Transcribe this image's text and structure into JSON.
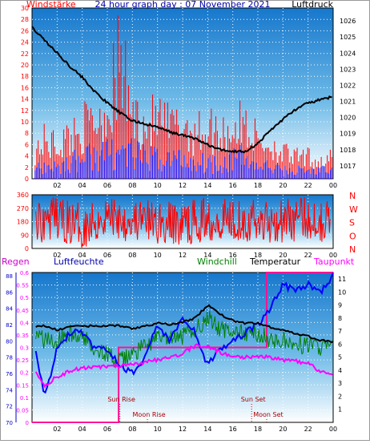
{
  "chart_data": [
    {
      "type": "line",
      "title": "24 hour graph day : 07 November 2021",
      "left_label": "Windstärke",
      "right_label": "Luftdruck",
      "left_ticks": [
        "0",
        "2",
        "4",
        "6",
        "8",
        "10",
        "12",
        "14",
        "16",
        "18",
        "20",
        "22",
        "24",
        "26",
        "28",
        "30"
      ],
      "right_ticks": [
        "1017",
        "1018",
        "1019",
        "1020",
        "1021",
        "1022",
        "1023",
        "1024",
        "1025",
        "1026"
      ],
      "x_ticks": [
        "02",
        "04",
        "06",
        "08",
        "10",
        "12",
        "14",
        "16",
        "18",
        "20",
        "22",
        "00"
      ],
      "ylim_left": [
        0,
        30
      ],
      "ylim_right": [
        1016.2,
        1026.8
      ],
      "grid": true,
      "series": [
        {
          "name": "Luftdruck",
          "color": "#000000",
          "x": [
            0,
            1,
            2,
            3,
            4,
            5,
            6,
            7,
            8,
            9,
            10,
            11,
            12,
            13,
            14,
            15,
            16,
            17,
            18,
            19,
            20,
            21,
            22,
            23,
            24
          ],
          "values": [
            1025.6,
            1024.8,
            1024.0,
            1023.2,
            1022.5,
            1021.6,
            1020.9,
            1020.3,
            1019.8,
            1019.6,
            1019.4,
            1019.1,
            1018.9,
            1018.7,
            1018.3,
            1018.0,
            1017.9,
            1017.9,
            1018.4,
            1019.2,
            1019.9,
            1020.5,
            1020.9,
            1021.1,
            1021.3
          ]
        },
        {
          "name": "Windböen",
          "color": "#ff0000",
          "x": [
            0,
            1,
            2,
            3,
            4,
            5,
            6,
            7,
            8,
            9,
            10,
            11,
            12,
            13,
            14,
            15,
            16,
            17,
            18,
            19,
            20,
            21,
            22,
            23,
            24
          ],
          "values": [
            6,
            9,
            8,
            10,
            12,
            14,
            16,
            28,
            15,
            13,
            14,
            12,
            13,
            11,
            12,
            11,
            12,
            13,
            9,
            8,
            6,
            5,
            5,
            4,
            5
          ]
        },
        {
          "name": "Wind",
          "color": "#0000ff",
          "x": [
            0,
            1,
            2,
            3,
            4,
            5,
            6,
            7,
            8,
            9,
            10,
            11,
            12,
            13,
            14,
            15,
            16,
            17,
            18,
            19,
            20,
            21,
            22,
            23,
            24
          ],
          "values": [
            2,
            3,
            3,
            4,
            5,
            6,
            6,
            7,
            6,
            5,
            5,
            5,
            5,
            4,
            4,
            4,
            5,
            5,
            3,
            3,
            2,
            2,
            2,
            2,
            2
          ]
        }
      ]
    },
    {
      "type": "scatter",
      "left_ticks": [
        "0",
        "90",
        "180",
        "270",
        "360"
      ],
      "right_labels": [
        "N",
        "W",
        "S",
        "O",
        "N"
      ],
      "x_ticks": [
        "02",
        "04",
        "06",
        "08",
        "10",
        "12",
        "14",
        "16",
        "18",
        "20",
        "22",
        "00"
      ],
      "ylim": [
        0,
        360
      ],
      "series": [
        {
          "name": "Windrichtung",
          "color": "#ff0000",
          "x": [
            0,
            2,
            4,
            6,
            8,
            10,
            12,
            14,
            16,
            18,
            20,
            22,
            24
          ],
          "values": [
            180,
            200,
            150,
            220,
            190,
            170,
            160,
            200,
            210,
            180,
            190,
            200,
            190
          ]
        }
      ]
    },
    {
      "type": "line",
      "header_labels": {
        "regen": "Regen",
        "luftfeuchte": "Luftfeuchte",
        "windchill": "Windchill",
        "temperatur": "Temperatur",
        "taupunkt": "Taupunkt"
      },
      "left_ticks": [
        "0",
        "0.05",
        "0.1",
        "0.15",
        "0.2",
        "0.25",
        "0.3",
        "0.35",
        "0.4",
        "0.45",
        "0.5",
        "0.55",
        "0.6"
      ],
      "humidity_ticks": [
        "70",
        "72",
        "74",
        "76",
        "78",
        "80",
        "82",
        "84",
        "86",
        "88"
      ],
      "right_ticks": [
        "1",
        "2",
        "3",
        "4",
        "5",
        "6",
        "7",
        "8",
        "9",
        "10",
        "11"
      ],
      "x_ticks": [
        "02",
        "04",
        "06",
        "08",
        "10",
        "12",
        "14",
        "16",
        "18",
        "20",
        "22",
        "00"
      ],
      "ylim_left": [
        0,
        0.6
      ],
      "ylim_temp": [
        0,
        11.5
      ],
      "events": {
        "sun_rise": "Sun Rise",
        "sun_set": "Sun Set",
        "moon_rise": "Moon Rise",
        "moon_set": "Moon Set"
      },
      "series": [
        {
          "name": "Temperatur",
          "color": "#000000",
          "x": [
            0,
            1,
            2,
            3,
            4,
            5,
            6,
            7,
            8,
            9,
            10,
            11,
            12,
            13,
            14,
            15,
            16,
            17,
            18,
            19,
            20,
            21,
            22,
            23,
            24
          ],
          "values": [
            7.3,
            7.4,
            7.1,
            7.3,
            7.4,
            7.4,
            7.4,
            7.4,
            7.2,
            7.4,
            7.6,
            7.5,
            7.7,
            8.0,
            9.0,
            8.3,
            7.8,
            7.6,
            7.6,
            7.3,
            7.1,
            6.8,
            6.6,
            6.3,
            6.2
          ]
        },
        {
          "name": "Windchill",
          "color": "#008000",
          "x": [
            0,
            1,
            2,
            3,
            4,
            5,
            6,
            7,
            8,
            9,
            10,
            11,
            12,
            13,
            14,
            15,
            16,
            17,
            18,
            19,
            20,
            21,
            22,
            23,
            24
          ],
          "values": [
            6.9,
            6.3,
            6.4,
            6.8,
            6.5,
            5.8,
            5.2,
            4.6,
            5.3,
            5.8,
            6.6,
            6.3,
            6.6,
            7.1,
            8.1,
            7.1,
            7.0,
            6.8,
            6.8,
            6.4,
            6.2,
            6.0,
            5.9,
            5.8,
            5.9
          ]
        },
        {
          "name": "Luftfeuchte",
          "color": "#0000ff",
          "x": [
            0,
            1,
            2,
            3,
            4,
            5,
            6,
            7,
            8,
            9,
            10,
            11,
            12,
            13,
            14,
            15,
            16,
            17,
            18,
            19,
            20,
            21,
            22,
            23,
            24
          ],
          "values": [
            81,
            73,
            79,
            81,
            81,
            79,
            79,
            77,
            76,
            78,
            82,
            80,
            83,
            81,
            77,
            79,
            80,
            81,
            82,
            84,
            87,
            86,
            87,
            86,
            88
          ]
        },
        {
          "name": "Taupunkt",
          "color": "#ff00ff",
          "x": [
            0,
            1,
            2,
            3,
            4,
            5,
            6,
            7,
            8,
            9,
            10,
            11,
            12,
            13,
            14,
            15,
            16,
            17,
            18,
            19,
            20,
            21,
            22,
            23,
            24
          ],
          "values": [
            4.2,
            2.8,
            3.5,
            3.9,
            4.2,
            4.2,
            4.3,
            4.3,
            4.4,
            4.6,
            4.8,
            5.0,
            5.3,
            5.9,
            5.8,
            5.4,
            5.0,
            5.0,
            5.1,
            5.0,
            4.8,
            4.7,
            4.5,
            3.9,
            3.7
          ]
        },
        {
          "name": "Regen",
          "color": "#ff1493",
          "x": [
            0,
            6.9,
            6.9,
            18.7,
            18.7,
            24
          ],
          "values": [
            0,
            0,
            0.3,
            0.3,
            0.6,
            0.6
          ]
        }
      ]
    }
  ]
}
